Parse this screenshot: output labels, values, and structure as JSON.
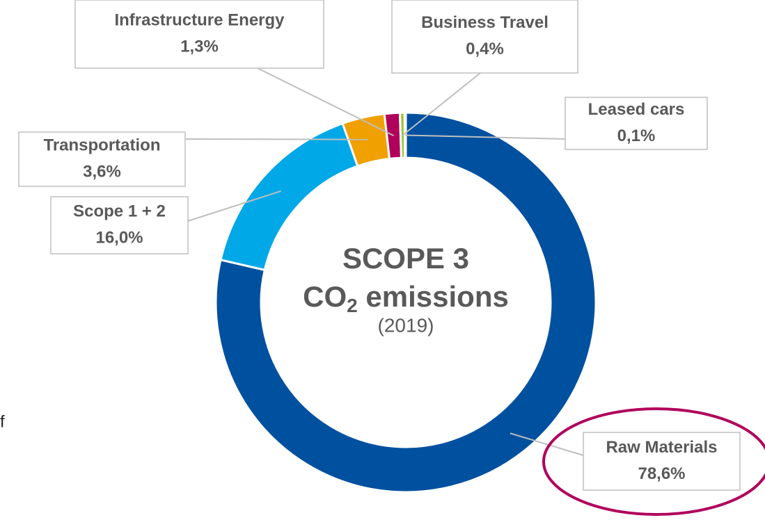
{
  "chart_data": {
    "type": "donut",
    "title": "SCOPE 3",
    "subtitle_parts": [
      "CO",
      "2",
      " emissions"
    ],
    "year": "(2019)",
    "categories": [
      "Raw Materials",
      "Scope 1 + 2",
      "Transportation",
      "Infrastructure Energy",
      "Business Travel",
      "Leased cars"
    ],
    "values": [
      78.6,
      16.0,
      3.6,
      1.3,
      0.4,
      0.1
    ],
    "value_labels": [
      "78,6%",
      "16,0%",
      "3,6%",
      "1,3%",
      "0,4%",
      "0,1%"
    ],
    "colors": [
      "#0050a0",
      "#00a8e8",
      "#f0a000",
      "#b0005c",
      "#9cc83c",
      "#1f5c8c"
    ]
  },
  "fragment": "f"
}
